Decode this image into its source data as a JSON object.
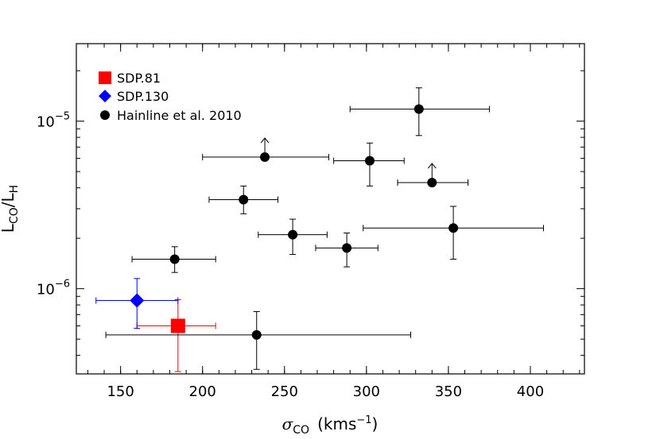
{
  "chart_data": {
    "type": "scatter",
    "xlabel": "σCO (kms⁻¹)",
    "xlabel_parts": {
      "symbol": "σ",
      "sub": "CO",
      "unit": "(kms",
      "exp": "−1",
      "close": ")"
    },
    "ylabel": "LCO/LH",
    "ylabel_parts": {
      "l1": "L",
      "s1": "CO",
      "slash": "/",
      "l2": "L",
      "s2": "H"
    },
    "xlim": [
      123,
      433
    ],
    "ylim": [
      3.1e-07,
      2.9e-05
    ],
    "yscale": "log",
    "xticks": [
      150,
      200,
      250,
      300,
      350,
      400
    ],
    "xtick_labels": [
      "150",
      "200",
      "250",
      "300",
      "350",
      "400"
    ],
    "x_minor_step": 10,
    "yticks_major": [
      {
        "value": 1e-06,
        "base": "10",
        "exp": "−6"
      },
      {
        "value": 1e-05,
        "base": "10",
        "exp": "−5"
      }
    ],
    "legend_position": "top-left",
    "grid": false,
    "series": [
      {
        "name": "SDP.81",
        "marker": "square",
        "color": "#ff0000",
        "points": [
          {
            "x": 185,
            "y": 6e-07,
            "xerr": [
              160,
              208
            ],
            "yerr": [
              3.2e-07,
              8.6e-07
            ],
            "lower_limit": false
          }
        ]
      },
      {
        "name": "SDP.130",
        "marker": "diamond",
        "color": "#0000ff",
        "points": [
          {
            "x": 160,
            "y": 8.5e-07,
            "xerr": [
              135,
              185
            ],
            "yerr": [
              5.8e-07,
              1.15e-06
            ],
            "lower_limit": false
          }
        ]
      },
      {
        "name": "Hainline et al. 2010",
        "marker": "circle",
        "color": "#000000",
        "points": [
          {
            "x": 332,
            "y": 1.18e-05,
            "xerr": [
              290,
              375
            ],
            "yerr": [
              8.2e-06,
              1.58e-05
            ],
            "lower_limit": false
          },
          {
            "x": 238,
            "y": 6.1e-06,
            "xerr": [
              200,
              277
            ],
            "yerr": null,
            "lower_limit": true
          },
          {
            "x": 302,
            "y": 5.8e-06,
            "xerr": [
              280,
              323
            ],
            "yerr": [
              4.1e-06,
              7.4e-06
            ],
            "lower_limit": false
          },
          {
            "x": 340,
            "y": 4.3e-06,
            "xerr": [
              319,
              362
            ],
            "yerr": null,
            "lower_limit": true
          },
          {
            "x": 225,
            "y": 3.4e-06,
            "xerr": [
              204,
              246
            ],
            "yerr": [
              2.8e-06,
              4.1e-06
            ],
            "lower_limit": false
          },
          {
            "x": 255,
            "y": 2.1e-06,
            "xerr": [
              234,
              276
            ],
            "yerr": [
              1.6e-06,
              2.6e-06
            ],
            "lower_limit": false
          },
          {
            "x": 353,
            "y": 2.3e-06,
            "xerr": [
              298,
              408
            ],
            "yerr": [
              1.5e-06,
              3.1e-06
            ],
            "lower_limit": false
          },
          {
            "x": 288,
            "y": 1.75e-06,
            "xerr": [
              269,
              307
            ],
            "yerr": [
              1.35e-06,
              2.15e-06
            ],
            "lower_limit": false
          },
          {
            "x": 183,
            "y": 1.5e-06,
            "xerr": [
              157,
              208
            ],
            "yerr": [
              1.25e-06,
              1.78e-06
            ],
            "lower_limit": false
          },
          {
            "x": 233,
            "y": 5.3e-07,
            "xerr": [
              141,
              327
            ],
            "yerr": [
              3.3e-07,
              7.3e-07
            ],
            "lower_limit": false
          }
        ]
      }
    ]
  }
}
